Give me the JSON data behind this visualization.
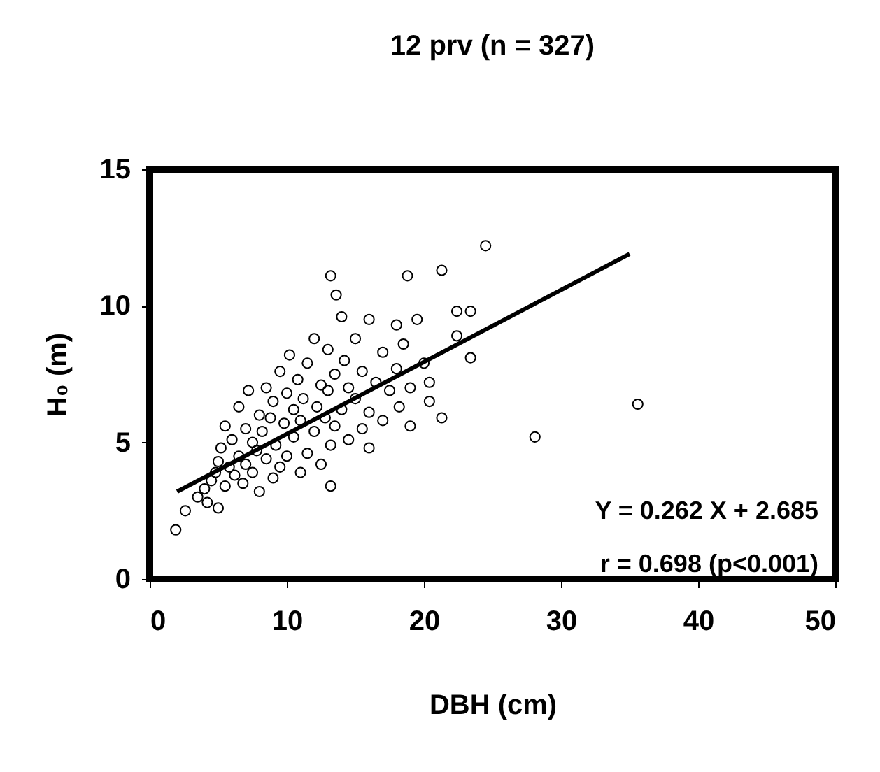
{
  "chart_data": {
    "type": "scatter",
    "title": "12 prv (n = 327)",
    "xlabel": "DBH (cm)",
    "ylabel": "H₀ (m)",
    "xlim": [
      0,
      50
    ],
    "xticks": [
      0,
      10,
      20,
      30,
      40,
      50
    ],
    "ylim": [
      0,
      15
    ],
    "yticks": [
      0,
      5,
      10,
      15
    ],
    "grid": false,
    "annotations": [
      "Y = 0.262 X + 2.685",
      "r = 0.698 (p<0.001)"
    ],
    "series": [
      {
        "marker": "circle",
        "color": "#000000",
        "x": [
          1.9,
          2.6,
          3.5,
          4,
          4.2,
          4.5,
          4.8,
          5,
          5,
          5.2,
          5.5,
          5.5,
          5.8,
          6,
          6.2,
          6.5,
          6.5,
          6.8,
          7,
          7,
          7.2,
          7.5,
          7.5,
          7.8,
          8,
          8,
          8.2,
          8.5,
          8.5,
          8.8,
          9,
          9,
          9.2,
          9.5,
          9.5,
          9.8,
          10,
          10,
          10.2,
          10.5,
          10.5,
          10.8,
          11,
          11,
          11.2,
          11.5,
          11.5,
          12,
          12,
          12.2,
          12.5,
          12.5,
          12.8,
          13,
          13,
          13.2,
          13.2,
          13.2,
          13.5,
          13.5,
          13.6,
          14,
          14,
          14.2,
          14.5,
          14.5,
          15,
          15,
          15.5,
          15.5,
          16,
          16,
          16,
          16.5,
          17,
          17,
          17.5,
          18,
          18,
          18.2,
          18.5,
          18.8,
          19,
          19,
          19.5,
          20,
          20.4,
          20.4,
          21.3,
          21.3,
          22.4,
          22.4,
          23.4,
          23.4,
          24.5,
          28.1,
          35.6
        ],
        "values": [
          1.8,
          2.5,
          3.0,
          3.3,
          2.8,
          3.6,
          3.9,
          2.6,
          4.3,
          4.8,
          5.6,
          3.4,
          4.1,
          5.1,
          3.8,
          4.5,
          6.3,
          3.5,
          5.5,
          4.2,
          6.9,
          5.0,
          3.9,
          4.7,
          6.0,
          3.2,
          5.4,
          4.4,
          7.0,
          5.9,
          3.7,
          6.5,
          4.9,
          7.6,
          4.1,
          5.7,
          6.8,
          4.5,
          8.2,
          5.2,
          6.2,
          7.3,
          3.9,
          5.8,
          6.6,
          4.6,
          7.9,
          5.4,
          8.8,
          6.3,
          7.1,
          4.2,
          5.9,
          6.9,
          8.4,
          4.9,
          11.1,
          3.4,
          7.5,
          5.6,
          10.4,
          6.2,
          9.6,
          8.0,
          5.1,
          7.0,
          6.6,
          8.8,
          5.5,
          7.6,
          9.5,
          6.1,
          4.8,
          7.2,
          8.3,
          5.8,
          6.9,
          7.7,
          9.3,
          6.3,
          8.6,
          11.1,
          7.0,
          5.6,
          9.5,
          7.9,
          6.5,
          7.2,
          11.3,
          5.9,
          9.8,
          8.9,
          9.8,
          8.1,
          12.2,
          5.2,
          6.4
        ]
      },
      {
        "type": "line",
        "marker": "none",
        "color": "#000000",
        "x": [
          2,
          35
        ],
        "values": [
          3.2,
          11.9
        ]
      }
    ]
  }
}
